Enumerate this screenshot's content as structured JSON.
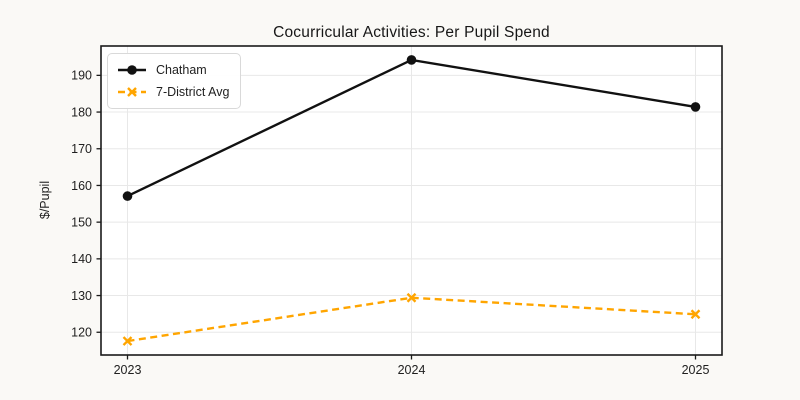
{
  "figure": {
    "title": "Cocurricular Activities: Per Pupil Spend",
    "ylabel": "$/Pupil"
  },
  "chart_data": {
    "type": "line",
    "title": "Cocurricular Activities: Per Pupil Spend",
    "xlabel": "",
    "ylabel": "$/Pupil",
    "categories": [
      "2023",
      "2024",
      "2025"
    ],
    "series": [
      {
        "name": "Chatham",
        "values": [
          157.1,
          194.2,
          181.4
        ],
        "color": "#111111",
        "line_style": "solid",
        "marker": "circle"
      },
      {
        "name": "7-District Avg",
        "values": [
          117.6,
          129.4,
          124.9
        ],
        "color": "#FFA500",
        "line_style": "dashed",
        "marker": "x"
      }
    ],
    "ylim": [
      113.8,
      198.0
    ],
    "yticks": [
      120,
      130,
      140,
      150,
      160,
      170,
      180,
      190
    ],
    "grid": true,
    "legend_position": "upper left"
  },
  "colors": {
    "figure_bg": "#FAF9F6",
    "plot_bg": "#FFFFFF",
    "grid": "#E8E8E8",
    "spine": "#1A1A1A",
    "tick_text": "#1F1F1F",
    "legend_border": "#D9D9D9"
  }
}
